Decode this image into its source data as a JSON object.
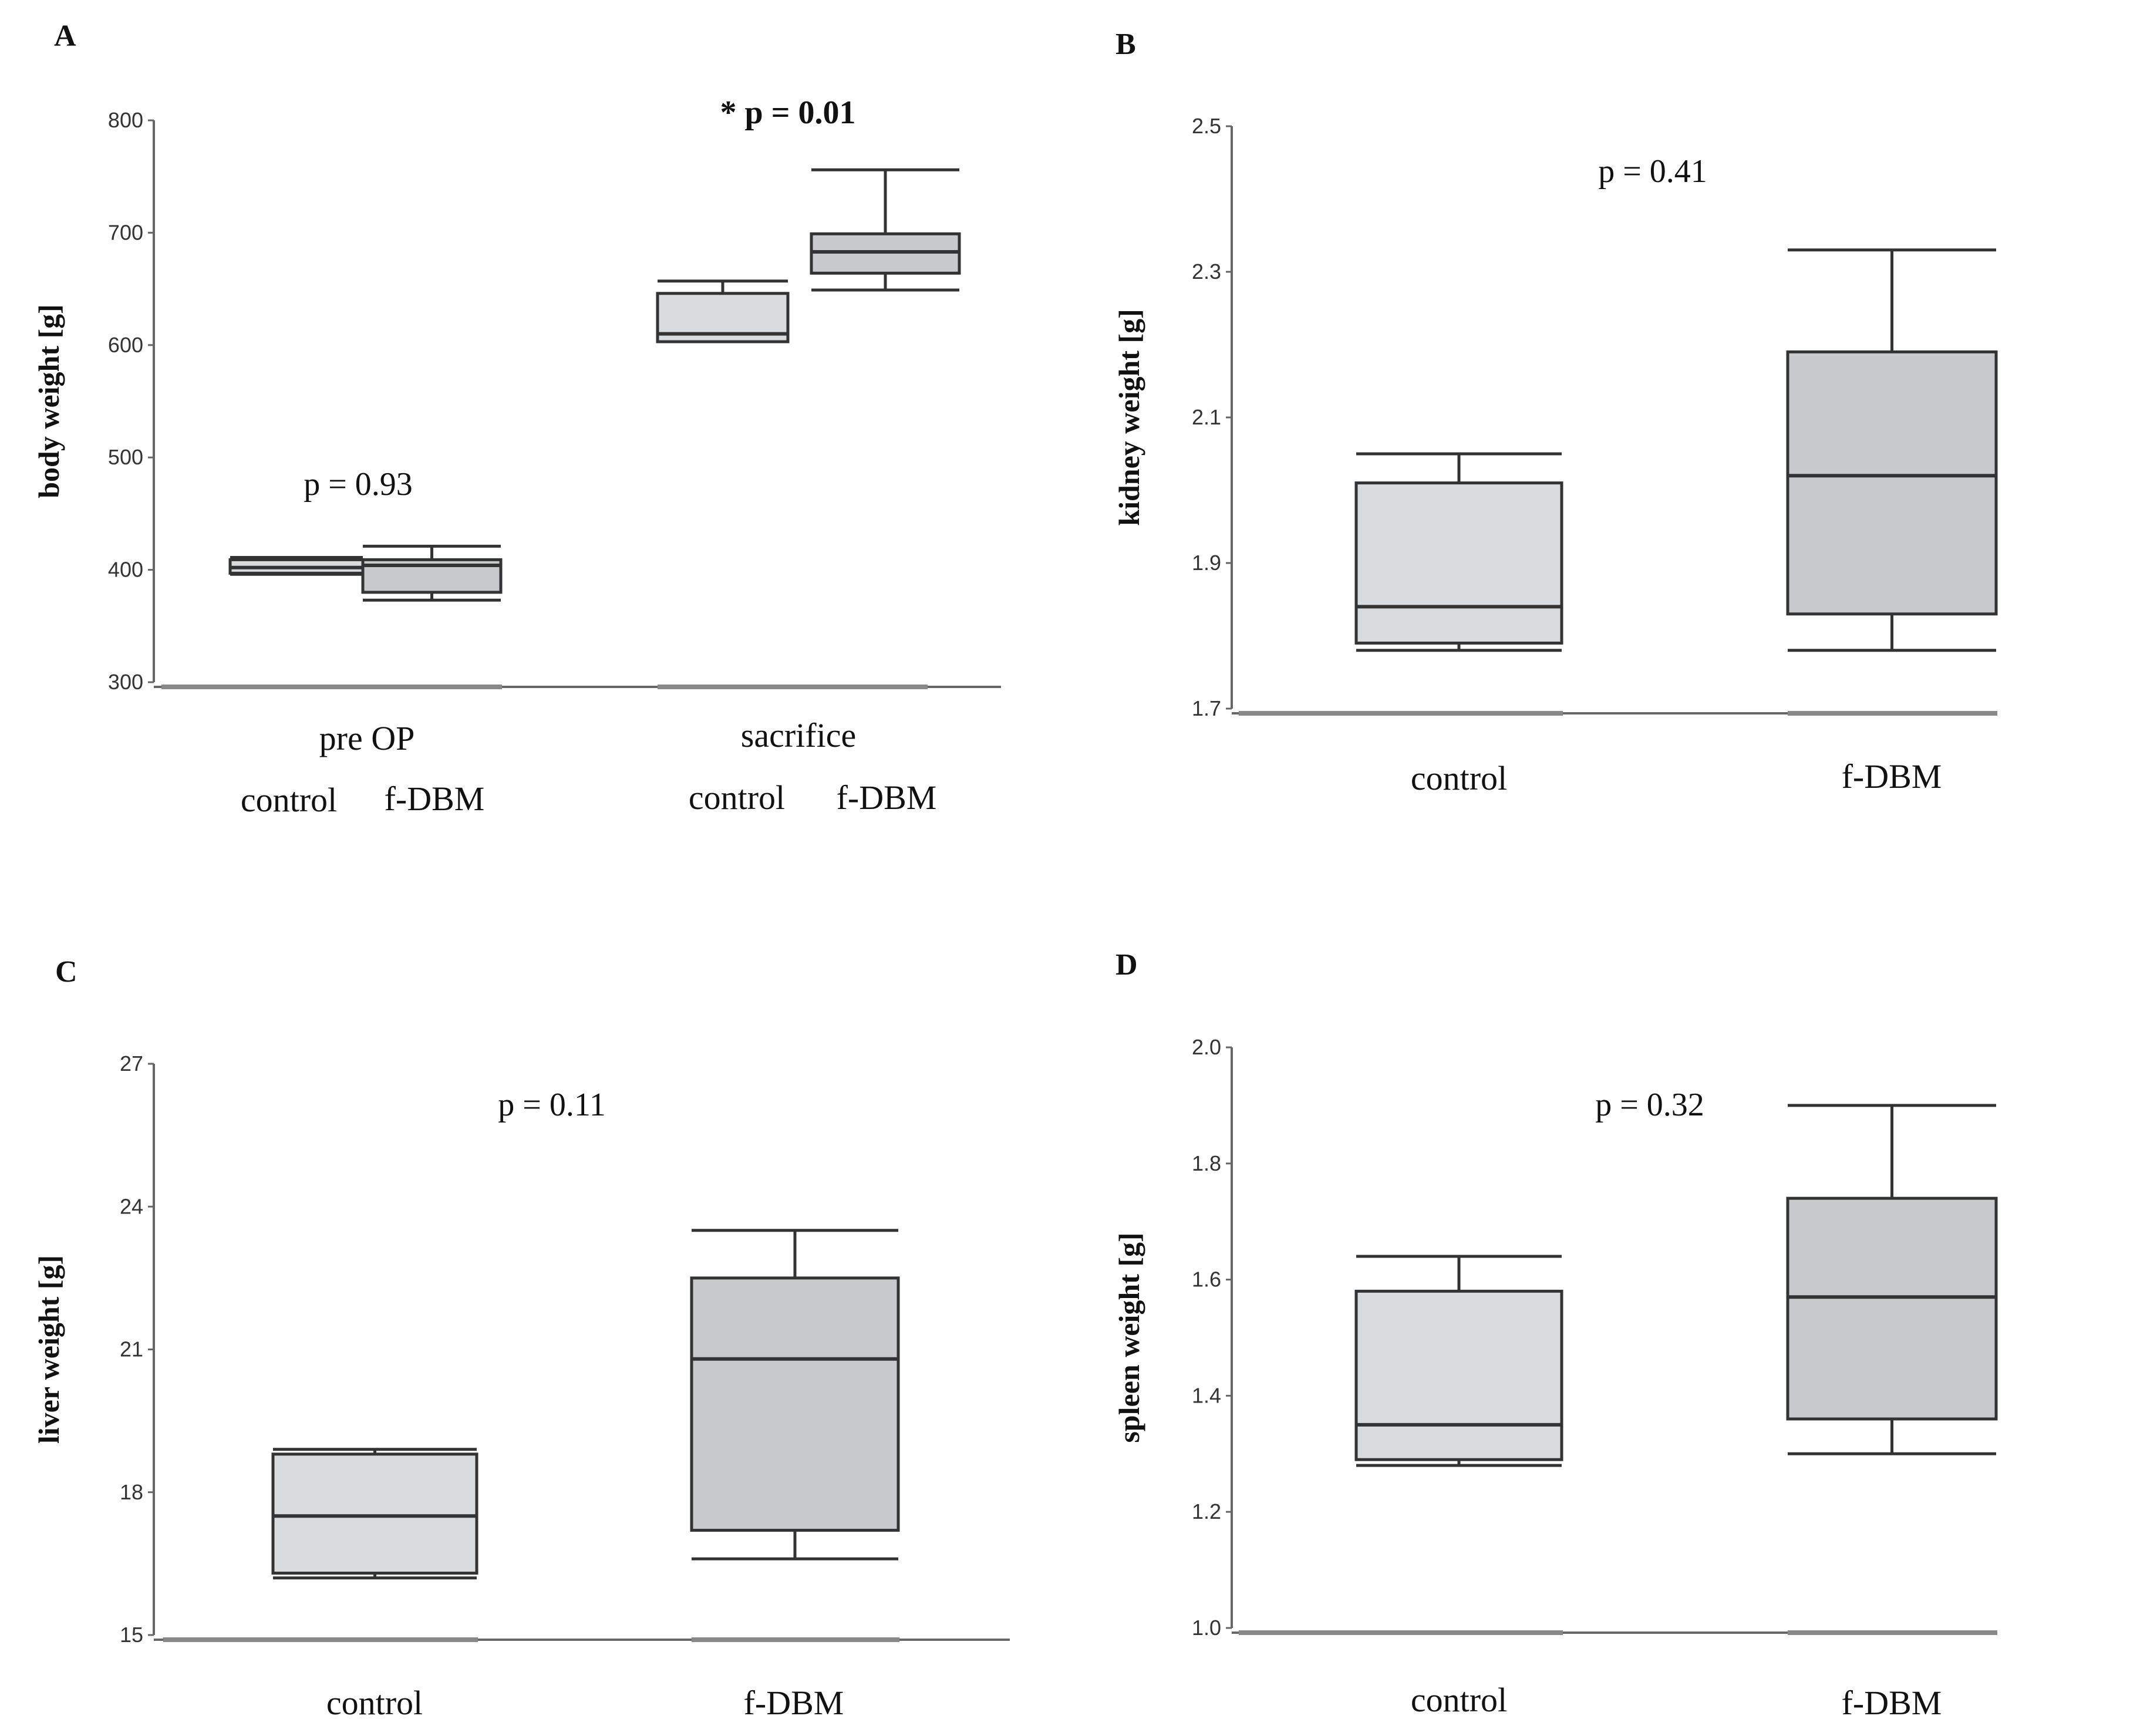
{
  "chart_data": [
    {
      "panel": "A",
      "type": "box",
      "ylabel": "body weight [g]",
      "ylim": [
        300,
        800
      ],
      "yticks": [
        "800",
        "700",
        "600",
        "500",
        "400",
        "300"
      ],
      "ytick_values": [
        800,
        700,
        600,
        500,
        400,
        300
      ],
      "groups": [
        {
          "label": "pre OP",
          "annotation": "p = 0.93",
          "annotation_bold": false,
          "boxes": [
            {
              "label": "control",
              "whislo": 396,
              "q1": 397,
              "med": 402,
              "q3": 409,
              "whishi": 411,
              "color": "#d9dcdf"
            },
            {
              "label": "f-DBM",
              "whislo": 373,
              "q1": 380,
              "med": 404,
              "q3": 409,
              "whishi": 421,
              "color": "#c7c9cc"
            }
          ]
        },
        {
          "label": "sacrifice",
          "annotation": "* p = 0.01",
          "annotation_bold": true,
          "boxes": [
            {
              "label": "control",
              "whislo": 603,
              "q1": 603,
              "med": 610,
              "q3": 646,
              "whishi": 657,
              "color": "#d9dcdf"
            },
            {
              "label": "f-DBM",
              "whislo": 649,
              "q1": 664,
              "med": 683,
              "q3": 699,
              "whishi": 756,
              "color": "#c7c9cc"
            }
          ]
        }
      ]
    },
    {
      "panel": "B",
      "type": "box",
      "ylabel": "kidney weight [g]",
      "ylim": [
        1.7,
        2.5
      ],
      "yticks": [
        "2.5",
        "2.3",
        "2.1",
        "1.9",
        "1.7"
      ],
      "ytick_values": [
        2.5,
        2.3,
        2.1,
        1.9,
        1.7
      ],
      "annotation": "p = 0.41",
      "boxes": [
        {
          "label": "control",
          "whislo": 1.78,
          "q1": 1.79,
          "med": 1.84,
          "q3": 2.01,
          "whishi": 2.05,
          "color": "#d9dcdf"
        },
        {
          "label": "f-DBM",
          "whislo": 1.78,
          "q1": 1.83,
          "med": 2.02,
          "q3": 2.19,
          "whishi": 2.33,
          "color": "#c7c9cc"
        }
      ]
    },
    {
      "panel": "C",
      "type": "box",
      "ylabel": "liver weight [g]",
      "ylim": [
        15,
        27
      ],
      "yticks": [
        "27",
        "24",
        "21",
        "18",
        "15"
      ],
      "ytick_values": [
        27,
        24,
        21,
        18,
        15
      ],
      "annotation": "p = 0.11",
      "boxes": [
        {
          "label": "control",
          "whislo": 16.2,
          "q1": 16.3,
          "med": 17.5,
          "q3": 18.8,
          "whishi": 18.9,
          "color": "#d9dcdf"
        },
        {
          "label": "f-DBM",
          "whislo": 16.6,
          "q1": 17.2,
          "med": 20.8,
          "q3": 22.5,
          "whishi": 23.5,
          "color": "#c7c9cc"
        }
      ]
    },
    {
      "panel": "D",
      "type": "box",
      "ylabel": "spleen weight [g]",
      "ylim": [
        1.0,
        2.0
      ],
      "yticks": [
        "2.0",
        "1.8",
        "1.6",
        "1.4",
        "1.2",
        "1.0"
      ],
      "ytick_values": [
        2.0,
        1.8,
        1.6,
        1.4,
        1.2,
        1.0
      ],
      "annotation": "p = 0.32",
      "boxes": [
        {
          "label": "control",
          "whislo": 1.28,
          "q1": 1.29,
          "med": 1.35,
          "q3": 1.58,
          "whishi": 1.64,
          "color": "#d9dcdf"
        },
        {
          "label": "f-DBM",
          "whislo": 1.3,
          "q1": 1.36,
          "med": 1.57,
          "q3": 1.74,
          "whishi": 1.9,
          "color": "#c7c9cc"
        }
      ]
    }
  ]
}
